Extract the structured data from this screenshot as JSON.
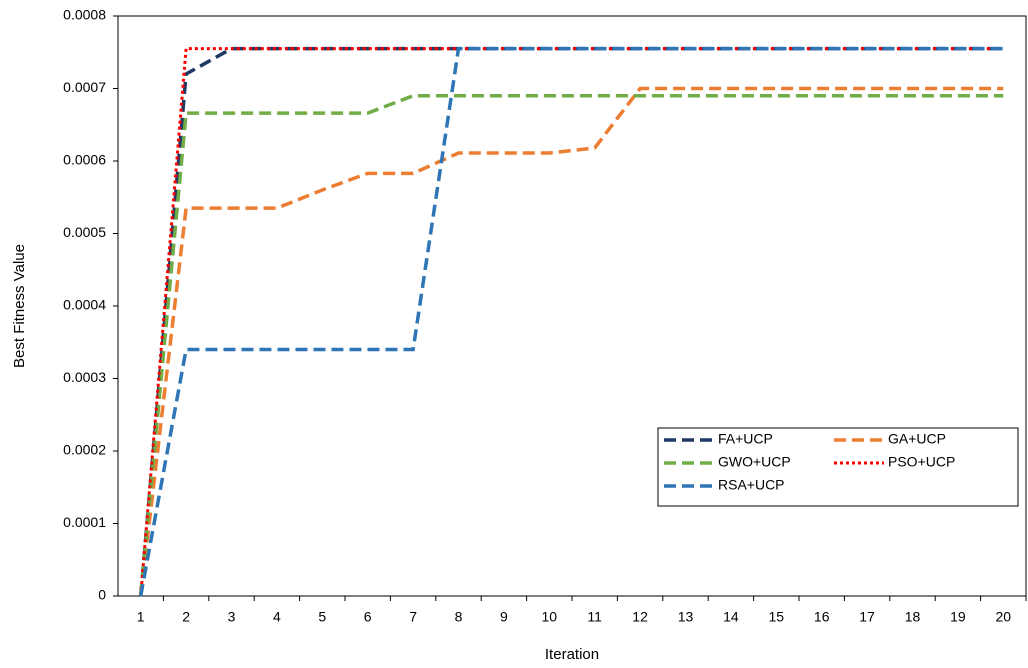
{
  "chart_data": {
    "type": "line",
    "x_label": "Iteration",
    "y_label": "Best Fitness Value",
    "categories": [
      "1",
      "2",
      "3",
      "4",
      "5",
      "6",
      "7",
      "8",
      "9",
      "10",
      "11",
      "12",
      "13",
      "14",
      "15",
      "16",
      "17",
      "18",
      "19",
      "20"
    ],
    "ylim": [
      0,
      0.0008
    ],
    "yticks": [
      0,
      0.0001,
      0.0002,
      0.0003,
      0.0004,
      0.0005,
      0.0006,
      0.0007,
      0.0008
    ],
    "grid": false,
    "legend": "lower right",
    "series": [
      {
        "name": "FA+UCP",
        "color": "#1f3864",
        "style": "dashed",
        "values": [
          0,
          0.00072,
          0.000755,
          0.000755,
          0.000755,
          0.000755,
          0.000755,
          0.000755,
          0.000755,
          0.000755,
          0.000755,
          0.000755,
          0.000755,
          0.000755,
          0.000755,
          0.000755,
          0.000755,
          0.000755,
          0.000755,
          0.000755
        ]
      },
      {
        "name": "GA+UCP",
        "color": "#ed7d31",
        "style": "dashed",
        "values": [
          0,
          0.000535,
          0.000535,
          0.000535,
          0.00056,
          0.000583,
          0.000583,
          0.000611,
          0.000611,
          0.000611,
          0.000618,
          0.0007,
          0.0007,
          0.0007,
          0.0007,
          0.0007,
          0.0007,
          0.0007,
          0.0007,
          0.0007
        ]
      },
      {
        "name": "GWO+UCP",
        "color": "#70ad47",
        "style": "dashed",
        "values": [
          0,
          0.000666,
          0.000666,
          0.000666,
          0.000666,
          0.000666,
          0.00069,
          0.00069,
          0.00069,
          0.00069,
          0.00069,
          0.00069,
          0.00069,
          0.00069,
          0.00069,
          0.00069,
          0.00069,
          0.00069,
          0.00069,
          0.00069
        ]
      },
      {
        "name": "PSO+UCP",
        "color": "#ff0000",
        "style": "dotted",
        "values": [
          0,
          0.000755,
          0.000755,
          0.000755,
          0.000755,
          0.000755,
          0.000755,
          0.000755,
          0.000755,
          0.000755,
          0.000755,
          0.000755,
          0.000755,
          0.000755,
          0.000755,
          0.000755,
          0.000755,
          0.000755,
          0.000755,
          0.000755
        ]
      },
      {
        "name": "RSA+UCP",
        "color": "#2e75b6",
        "style": "dashed",
        "values": [
          0,
          0.00034,
          0.00034,
          0.00034,
          0.00034,
          0.00034,
          0.00034,
          0.000755,
          0.000755,
          0.000755,
          0.000755,
          0.000755,
          0.000755,
          0.000755,
          0.000755,
          0.000755,
          0.000755,
          0.000755,
          0.000755,
          0.000755
        ]
      }
    ]
  }
}
